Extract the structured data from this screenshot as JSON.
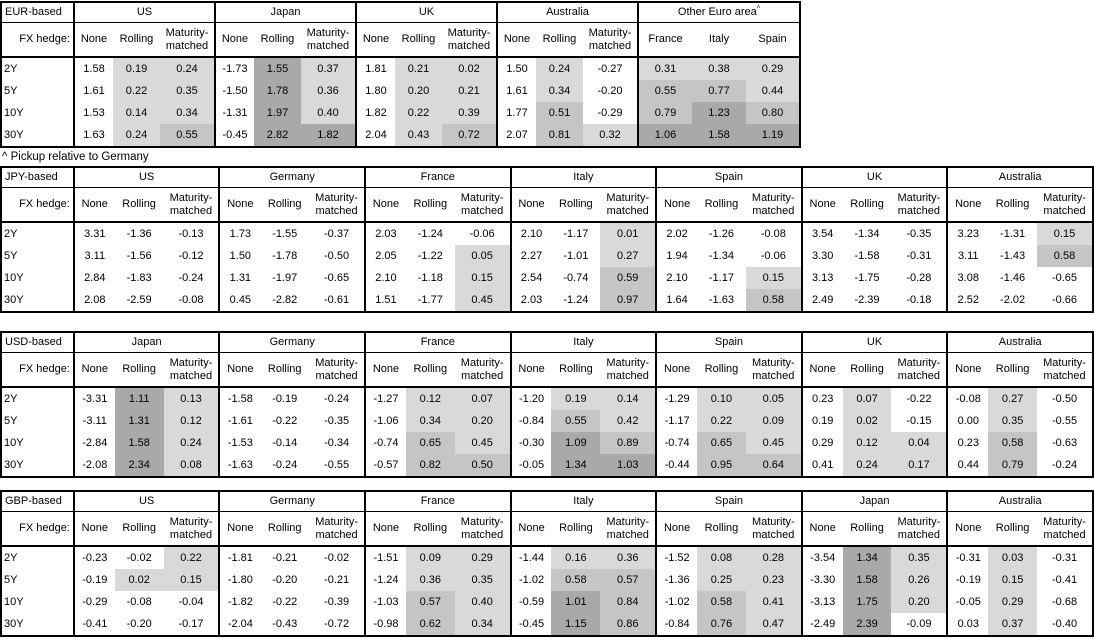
{
  "labels": {
    "fx_hedge": "FX hedge:",
    "tenors": [
      "2Y",
      "5Y",
      "10Y",
      "30Y"
    ],
    "standard_columns": [
      "None",
      "Rolling",
      "Maturity-matched"
    ]
  },
  "footnote": "^ Pickup relative to Germany",
  "shading": {
    "light": "#d9d9d9",
    "medium": "#c5c5c5",
    "dark": "#a9a9a9",
    "light_below": 0.5,
    "medium_below": 1.0,
    "rule": "positive values in hedged columns shaded by magnitude"
  },
  "tables": [
    {
      "base": "EUR-based",
      "groups": [
        {
          "name": "US",
          "columns": [
            "None",
            "Rolling",
            "Maturity-matched"
          ],
          "shade_cols": [
            1,
            2
          ],
          "values": [
            [
              "1.58",
              "0.19",
              "0.24"
            ],
            [
              "1.61",
              "0.22",
              "0.35"
            ],
            [
              "1.53",
              "0.14",
              "0.34"
            ],
            [
              "1.63",
              "0.24",
              "0.55"
            ]
          ]
        },
        {
          "name": "Japan",
          "columns": [
            "None",
            "Rolling",
            "Maturity-matched"
          ],
          "shade_cols": [
            1,
            2
          ],
          "values": [
            [
              "-1.73",
              "1.55",
              "0.37"
            ],
            [
              "-1.50",
              "1.78",
              "0.36"
            ],
            [
              "-1.31",
              "1.97",
              "0.40"
            ],
            [
              "-0.45",
              "2.82",
              "1.82"
            ]
          ]
        },
        {
          "name": "UK",
          "columns": [
            "None",
            "Rolling",
            "Maturity-matched"
          ],
          "shade_cols": [
            1,
            2
          ],
          "values": [
            [
              "1.81",
              "0.21",
              "0.02"
            ],
            [
              "1.80",
              "0.20",
              "0.21"
            ],
            [
              "1.82",
              "0.22",
              "0.39"
            ],
            [
              "2.04",
              "0.43",
              "0.72"
            ]
          ]
        },
        {
          "name": "Australia",
          "columns": [
            "None",
            "Rolling",
            "Maturity-matched"
          ],
          "shade_cols": [
            1,
            2
          ],
          "values": [
            [
              "1.50",
              "0.24",
              "-0.27"
            ],
            [
              "1.61",
              "0.34",
              "-0.20"
            ],
            [
              "1.77",
              "0.51",
              "-0.29"
            ],
            [
              "2.07",
              "0.81",
              "0.32"
            ]
          ]
        },
        {
          "name": "Other Euro area",
          "superscript": "^",
          "columns": [
            "France",
            "Italy",
            "Spain"
          ],
          "shade_cols": [
            0,
            1,
            2
          ],
          "values": [
            [
              "0.31",
              "0.38",
              "0.29"
            ],
            [
              "0.55",
              "0.77",
              "0.44"
            ],
            [
              "0.79",
              "1.23",
              "0.80"
            ],
            [
              "1.06",
              "1.58",
              "1.19"
            ]
          ]
        }
      ]
    },
    {
      "base": "JPY-based",
      "groups": [
        {
          "name": "US",
          "columns": [
            "None",
            "Rolling",
            "Maturity-matched"
          ],
          "shade_cols": [
            1,
            2
          ],
          "values": [
            [
              "3.31",
              "-1.36",
              "-0.13"
            ],
            [
              "3.11",
              "-1.56",
              "-0.12"
            ],
            [
              "2.84",
              "-1.83",
              "-0.24"
            ],
            [
              "2.08",
              "-2.59",
              "-0.08"
            ]
          ]
        },
        {
          "name": "Germany",
          "columns": [
            "None",
            "Rolling",
            "Maturity-matched"
          ],
          "shade_cols": [
            1,
            2
          ],
          "values": [
            [
              "1.73",
              "-1.55",
              "-0.37"
            ],
            [
              "1.50",
              "-1.78",
              "-0.50"
            ],
            [
              "1.31",
              "-1.97",
              "-0.65"
            ],
            [
              "0.45",
              "-2.82",
              "-0.61"
            ]
          ]
        },
        {
          "name": "France",
          "columns": [
            "None",
            "Rolling",
            "Maturity-matched"
          ],
          "shade_cols": [
            1,
            2
          ],
          "values": [
            [
              "2.03",
              "-1.24",
              "-0.06"
            ],
            [
              "2.05",
              "-1.22",
              "0.05"
            ],
            [
              "2.10",
              "-1.18",
              "0.15"
            ],
            [
              "1.51",
              "-1.77",
              "0.45"
            ]
          ]
        },
        {
          "name": "Italy",
          "columns": [
            "None",
            "Rolling",
            "Maturity-matched"
          ],
          "shade_cols": [
            1,
            2
          ],
          "values": [
            [
              "2.10",
              "-1.17",
              "0.01"
            ],
            [
              "2.27",
              "-1.01",
              "0.27"
            ],
            [
              "2.54",
              "-0.74",
              "0.59"
            ],
            [
              "2.03",
              "-1.24",
              "0.97"
            ]
          ]
        },
        {
          "name": "Spain",
          "columns": [
            "None",
            "Rolling",
            "Maturity-matched"
          ],
          "shade_cols": [
            1,
            2
          ],
          "values": [
            [
              "2.02",
              "-1.26",
              "-0.08"
            ],
            [
              "1.94",
              "-1.34",
              "-0.06"
            ],
            [
              "2.10",
              "-1.17",
              "0.15"
            ],
            [
              "1.64",
              "-1.63",
              "0.58"
            ]
          ]
        },
        {
          "name": "UK",
          "columns": [
            "None",
            "Rolling",
            "Maturity-matched"
          ],
          "shade_cols": [
            1,
            2
          ],
          "values": [
            [
              "3.54",
              "-1.34",
              "-0.35"
            ],
            [
              "3.30",
              "-1.58",
              "-0.31"
            ],
            [
              "3.13",
              "-1.75",
              "-0.28"
            ],
            [
              "2.49",
              "-2.39",
              "-0.18"
            ]
          ]
        },
        {
          "name": "Australia",
          "columns": [
            "None",
            "Rolling",
            "Maturity-matched"
          ],
          "shade_cols": [
            1,
            2
          ],
          "values": [
            [
              "3.23",
              "-1.31",
              "0.15"
            ],
            [
              "3.11",
              "-1.43",
              "0.58"
            ],
            [
              "3.08",
              "-1.46",
              "-0.65"
            ],
            [
              "2.52",
              "-2.02",
              "-0.66"
            ]
          ]
        }
      ]
    },
    {
      "base": "USD-based",
      "groups": [
        {
          "name": "Japan",
          "columns": [
            "None",
            "Rolling",
            "Maturity-matched"
          ],
          "shade_cols": [
            1,
            2
          ],
          "values": [
            [
              "-3.31",
              "1.11",
              "0.13"
            ],
            [
              "-3.11",
              "1.31",
              "0.12"
            ],
            [
              "-2.84",
              "1.58",
              "0.24"
            ],
            [
              "-2.08",
              "2.34",
              "0.08"
            ]
          ]
        },
        {
          "name": "Germany",
          "columns": [
            "None",
            "Rolling",
            "Maturity-matched"
          ],
          "shade_cols": [
            1,
            2
          ],
          "values": [
            [
              "-1.58",
              "-0.19",
              "-0.24"
            ],
            [
              "-1.61",
              "-0.22",
              "-0.35"
            ],
            [
              "-1.53",
              "-0.14",
              "-0.34"
            ],
            [
              "-1.63",
              "-0.24",
              "-0.55"
            ]
          ]
        },
        {
          "name": "France",
          "columns": [
            "None",
            "Rolling",
            "Maturity-matched"
          ],
          "shade_cols": [
            1,
            2
          ],
          "values": [
            [
              "-1.27",
              "0.12",
              "0.07"
            ],
            [
              "-1.06",
              "0.34",
              "0.20"
            ],
            [
              "-0.74",
              "0.65",
              "0.45"
            ],
            [
              "-0.57",
              "0.82",
              "0.50"
            ]
          ]
        },
        {
          "name": "Italy",
          "columns": [
            "None",
            "Rolling",
            "Maturity-matched"
          ],
          "shade_cols": [
            1,
            2
          ],
          "values": [
            [
              "-1.20",
              "0.19",
              "0.14"
            ],
            [
              "-0.84",
              "0.55",
              "0.42"
            ],
            [
              "-0.30",
              "1.09",
              "0.89"
            ],
            [
              "-0.05",
              "1.34",
              "1.03"
            ]
          ]
        },
        {
          "name": "Spain",
          "columns": [
            "None",
            "Rolling",
            "Maturity-matched"
          ],
          "shade_cols": [
            1,
            2
          ],
          "values": [
            [
              "-1.29",
              "0.10",
              "0.05"
            ],
            [
              "-1.17",
              "0.22",
              "0.09"
            ],
            [
              "-0.74",
              "0.65",
              "0.45"
            ],
            [
              "-0.44",
              "0.95",
              "0.64"
            ]
          ]
        },
        {
          "name": "UK",
          "columns": [
            "None",
            "Rolling",
            "Maturity-matched"
          ],
          "shade_cols": [
            1,
            2
          ],
          "values": [
            [
              "0.23",
              "0.07",
              "-0.22"
            ],
            [
              "0.19",
              "0.02",
              "-0.15"
            ],
            [
              "0.29",
              "0.12",
              "0.04"
            ],
            [
              "0.41",
              "0.24",
              "0.17"
            ]
          ]
        },
        {
          "name": "Australia",
          "columns": [
            "None",
            "Rolling",
            "Maturity-matched"
          ],
          "shade_cols": [
            1,
            2
          ],
          "values": [
            [
              "-0.08",
              "0.27",
              "-0.50"
            ],
            [
              "0.00",
              "0.35",
              "-0.55"
            ],
            [
              "0.23",
              "0.58",
              "-0.63"
            ],
            [
              "0.44",
              "0.79",
              "-0.24"
            ]
          ]
        }
      ]
    },
    {
      "base": "GBP-based",
      "groups": [
        {
          "name": "US",
          "columns": [
            "None",
            "Rolling",
            "Maturity-matched"
          ],
          "shade_cols": [
            1,
            2
          ],
          "values": [
            [
              "-0.23",
              "-0.02",
              "0.22"
            ],
            [
              "-0.19",
              "0.02",
              "0.15"
            ],
            [
              "-0.29",
              "-0.08",
              "-0.04"
            ],
            [
              "-0.41",
              "-0.20",
              "-0.17"
            ]
          ]
        },
        {
          "name": "Germany",
          "columns": [
            "None",
            "Rolling",
            "Maturity-matched"
          ],
          "shade_cols": [
            1,
            2
          ],
          "values": [
            [
              "-1.81",
              "-0.21",
              "-0.02"
            ],
            [
              "-1.80",
              "-0.20",
              "-0.21"
            ],
            [
              "-1.82",
              "-0.22",
              "-0.39"
            ],
            [
              "-2.04",
              "-0.43",
              "-0.72"
            ]
          ]
        },
        {
          "name": "France",
          "columns": [
            "None",
            "Rolling",
            "Maturity-matched"
          ],
          "shade_cols": [
            1,
            2
          ],
          "values": [
            [
              "-1.51",
              "0.09",
              "0.29"
            ],
            [
              "-1.24",
              "0.36",
              "0.35"
            ],
            [
              "-1.03",
              "0.57",
              "0.40"
            ],
            [
              "-0.98",
              "0.62",
              "0.34"
            ]
          ]
        },
        {
          "name": "Italy",
          "columns": [
            "None",
            "Rolling",
            "Maturity-matched"
          ],
          "shade_cols": [
            1,
            2
          ],
          "values": [
            [
              "-1.44",
              "0.16",
              "0.36"
            ],
            [
              "-1.02",
              "0.58",
              "0.57"
            ],
            [
              "-0.59",
              "1.01",
              "0.84"
            ],
            [
              "-0.45",
              "1.15",
              "0.86"
            ]
          ]
        },
        {
          "name": "Spain",
          "columns": [
            "None",
            "Rolling",
            "Maturity-matched"
          ],
          "shade_cols": [
            1,
            2
          ],
          "values": [
            [
              "-1.52",
              "0.08",
              "0.28"
            ],
            [
              "-1.36",
              "0.25",
              "0.23"
            ],
            [
              "-1.02",
              "0.58",
              "0.41"
            ],
            [
              "-0.84",
              "0.76",
              "0.47"
            ]
          ]
        },
        {
          "name": "Japan",
          "columns": [
            "None",
            "Rolling",
            "Maturity-matched"
          ],
          "shade_cols": [
            1,
            2
          ],
          "values": [
            [
              "-3.54",
              "1.34",
              "0.35"
            ],
            [
              "-3.30",
              "1.58",
              "0.26"
            ],
            [
              "-3.13",
              "1.75",
              "0.20"
            ],
            [
              "-2.49",
              "2.39",
              "-0.09"
            ]
          ]
        },
        {
          "name": "Australia",
          "columns": [
            "None",
            "Rolling",
            "Maturity-matched"
          ],
          "shade_cols": [
            1,
            2
          ],
          "values": [
            [
              "-0.31",
              "0.03",
              "-0.31"
            ],
            [
              "-0.19",
              "0.15",
              "-0.41"
            ],
            [
              "-0.05",
              "0.29",
              "-0.68"
            ],
            [
              "0.03",
              "0.37",
              "-0.40"
            ]
          ]
        }
      ]
    }
  ]
}
